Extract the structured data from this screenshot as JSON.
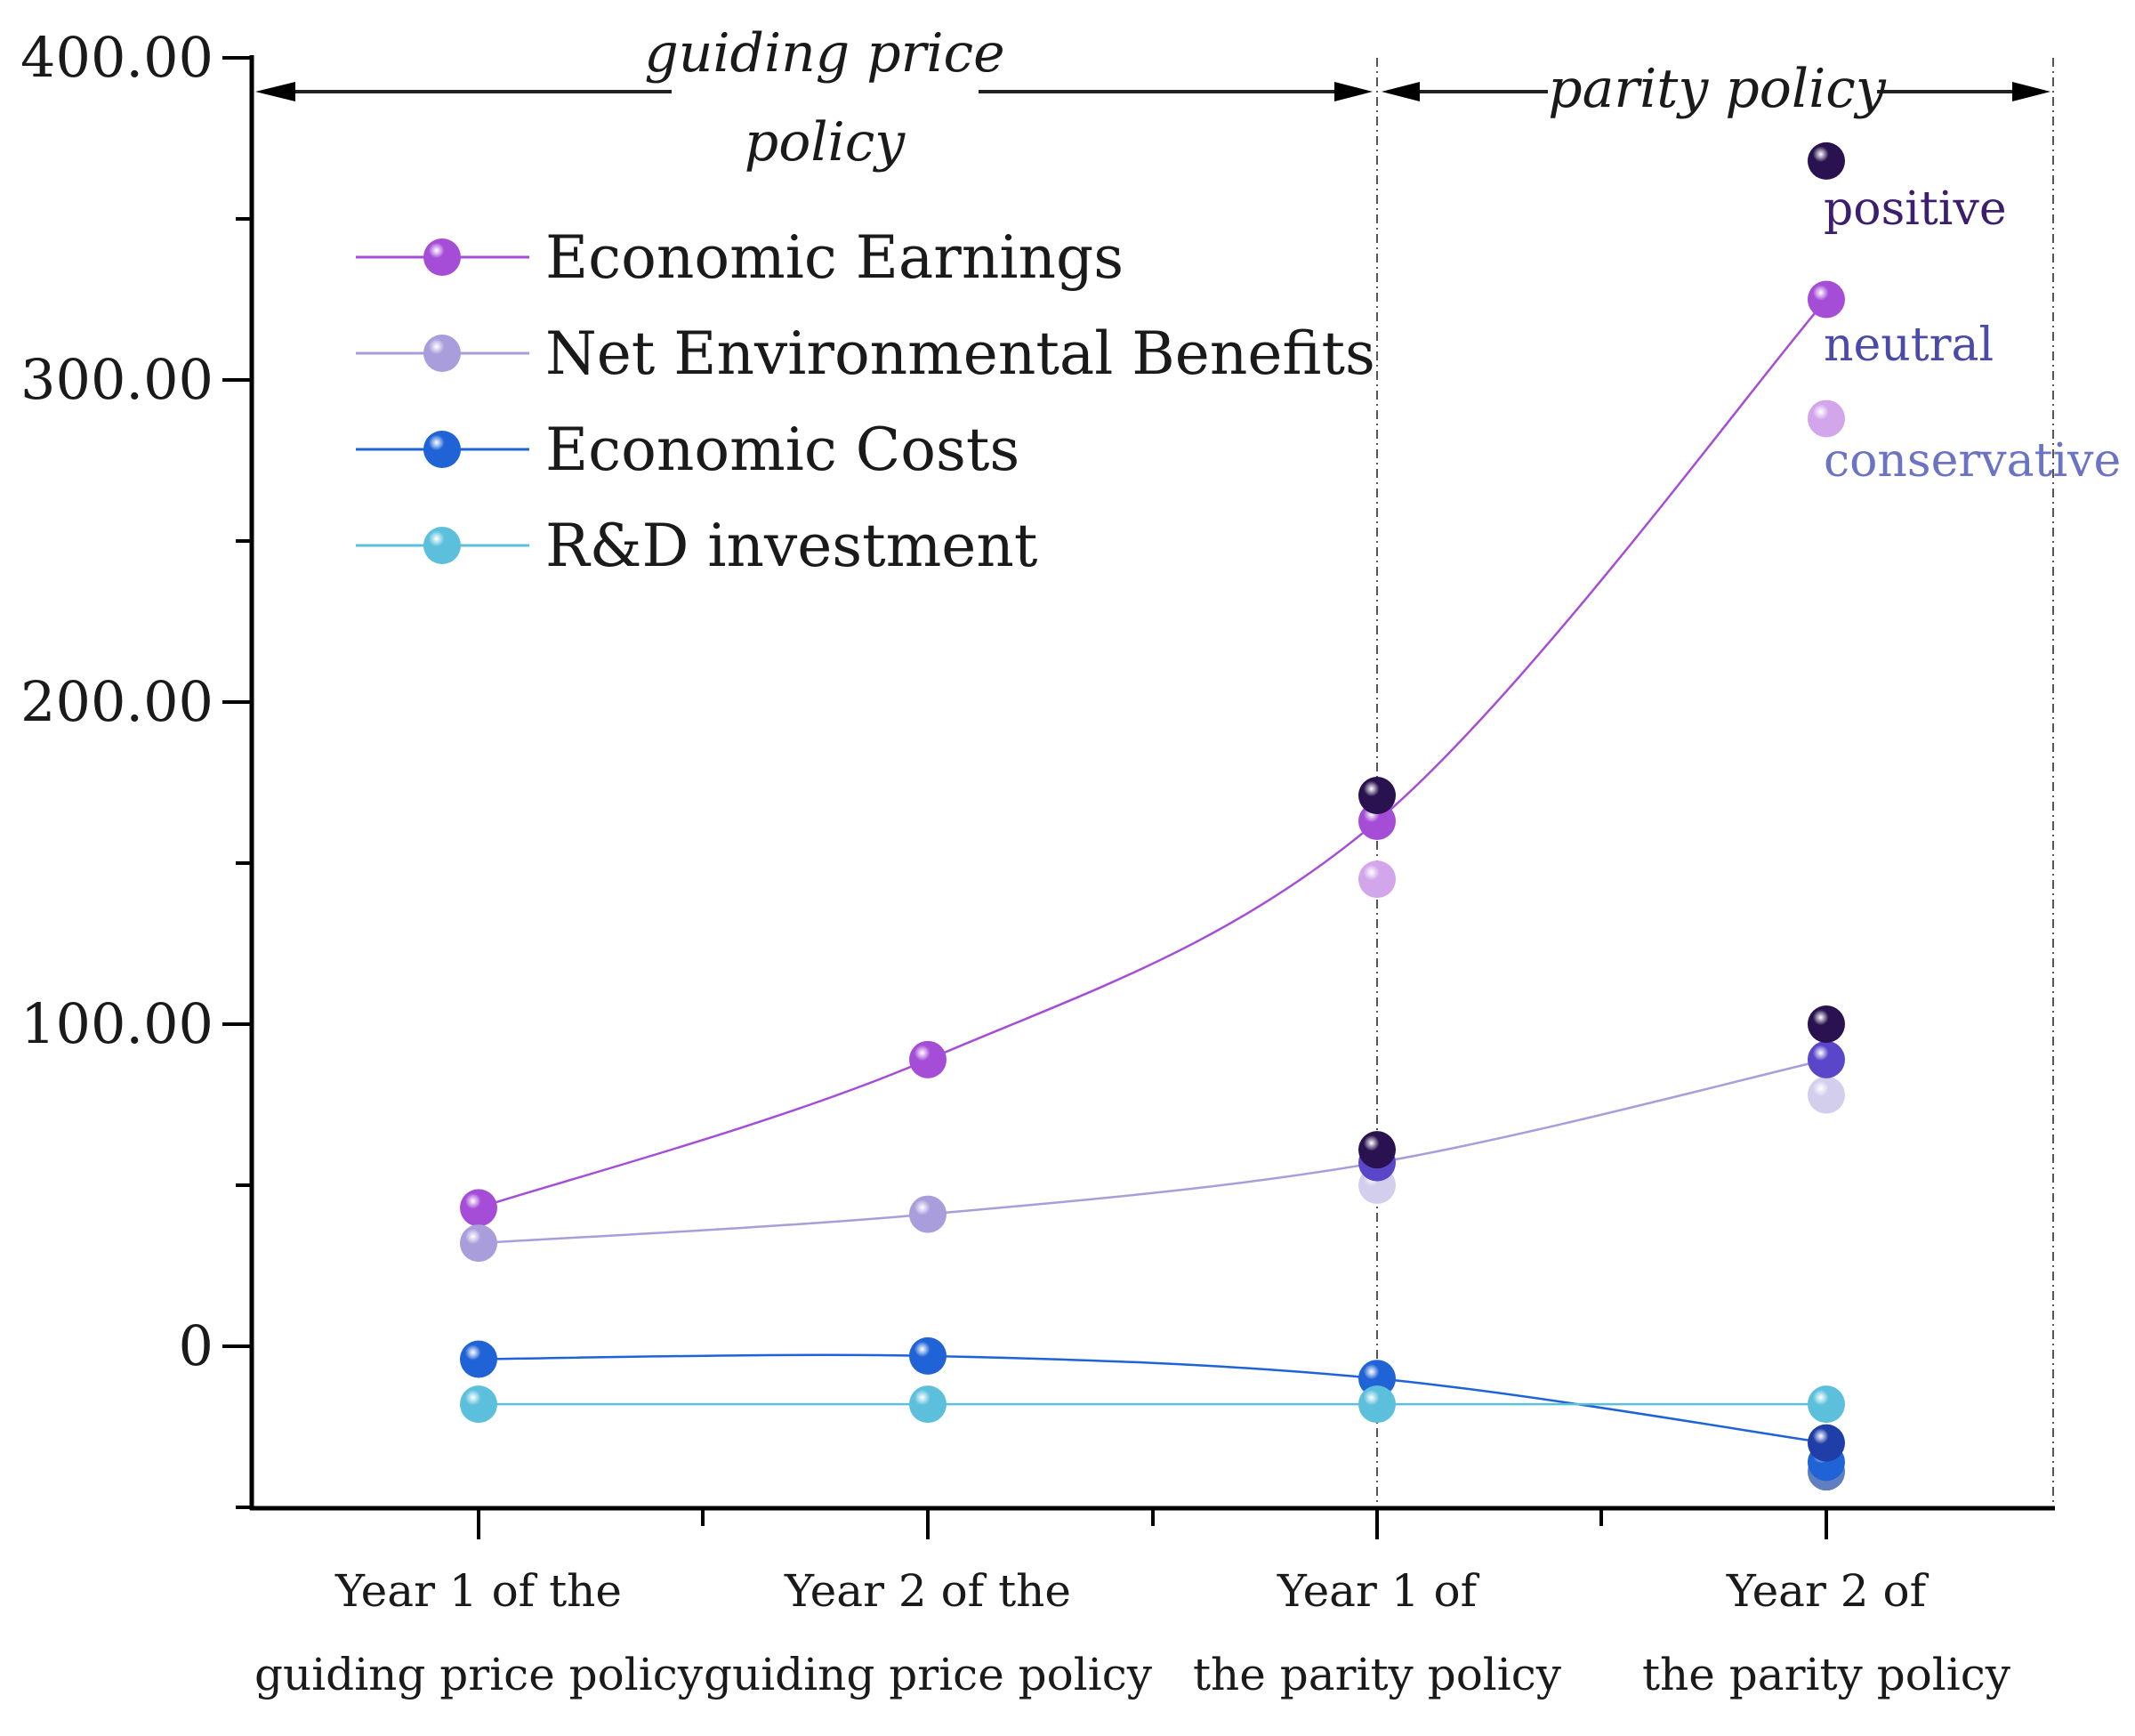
{
  "chart_data": {
    "type": "line",
    "title": "",
    "xlabel": "",
    "ylabel": "",
    "ylim": [
      -50,
      400
    ],
    "yticks": [
      "0",
      "100.00",
      "200.00",
      "300.00",
      "400.00"
    ],
    "categories": [
      [
        "Year 1 of the",
        "guiding price policy"
      ],
      [
        "Year 2 of the",
        "guiding price policy"
      ],
      [
        "Year 1 of",
        "the parity policy"
      ],
      [
        "Year 2 of",
        "the parity policy"
      ]
    ],
    "phases": [
      {
        "label_lines": [
          "guiding price",
          "policy"
        ]
      },
      {
        "label_lines": [
          "parity policy"
        ]
      }
    ],
    "scenarios": [
      {
        "label": "positive",
        "color": "#3b1f6e"
      },
      {
        "label": "neutral",
        "color": "#4a4aa8"
      },
      {
        "label": "conservative",
        "color": "#6b74c4"
      }
    ],
    "series": [
      {
        "name": "Economic Earnings",
        "color": "#a64dd8",
        "values": [
          43,
          89,
          163,
          325
        ],
        "scenario_values": [
          {
            "index": 2,
            "positive": 171,
            "neutral": 163,
            "conservative": 145
          },
          {
            "index": 3,
            "positive": 368,
            "neutral": 325,
            "conservative": 288
          }
        ]
      },
      {
        "name": "Net Environmental Benefits",
        "color": "#a99ddb",
        "values": [
          32,
          41,
          57,
          89
        ],
        "scenario_values": [
          {
            "index": 2,
            "positive": 61,
            "neutral": 57,
            "conservative": 50
          },
          {
            "index": 3,
            "positive": 100,
            "neutral": 89,
            "conservative": 78
          }
        ]
      },
      {
        "name": "Economic Costs",
        "color": "#1f63d6",
        "values": [
          -4,
          -3,
          -10,
          -30
        ],
        "scenario_values": [
          {
            "index": 3,
            "positive": -30,
            "neutral": -36,
            "conservative": -39
          }
        ]
      },
      {
        "name": "R&D investment",
        "color": "#5cc0dc",
        "values": [
          -18,
          -18,
          -18,
          -18
        ],
        "scenario_values": []
      }
    ]
  }
}
